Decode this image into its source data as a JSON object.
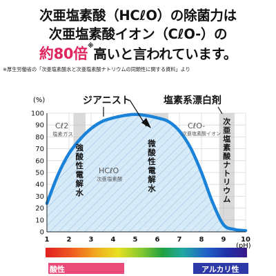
{
  "headline": {
    "line1": "次亜塩素酸（HCℓO）の除菌力は",
    "line2": "次亜塩素酸イオン（CℓO-）の",
    "line3_emph": "約80倍",
    "line3_mark": "※",
    "line3_rest": "高いと言われています。"
  },
  "source_note": "※厚生労働省の「次亜塩素酸水と次亜塩素酸ナトリウムの同類性に関する資料」より",
  "chart_data": {
    "type": "line",
    "y_unit": "(%)",
    "x_unit": "(pH)",
    "xlim": [
      1,
      10
    ],
    "ylim": [
      0,
      100
    ],
    "x_ticks": [
      1,
      2,
      3,
      4,
      5,
      6,
      7,
      8,
      9,
      10
    ],
    "y_ticks": [
      0,
      10,
      20,
      30,
      40,
      50,
      60,
      70,
      80,
      90,
      100
    ],
    "series": [
      {
        "x": [
          1,
          1.5,
          2,
          2.5,
          3,
          3.5,
          4,
          4.5,
          5,
          5.5,
          6,
          6.5,
          7,
          7.5,
          8,
          8.5,
          9,
          9.5,
          10
        ],
        "y": [
          24,
          48,
          66,
          78,
          87,
          93,
          96,
          98,
          99,
          98,
          96,
          93,
          85,
          71,
          50,
          25,
          6,
          2,
          1
        ]
      }
    ],
    "bands": [
      {
        "from": 2.2,
        "to": 2.75,
        "label": "強酸性電解水"
      },
      {
        "from": 5.0,
        "to": 6.5,
        "label": "微酸性電解水"
      },
      {
        "from": 8.8,
        "to": 9.5,
        "label": "次亜塩素酸ナトリウム"
      }
    ],
    "region_labels": {
      "cl2": {
        "formula": "Cℓ2",
        "name": "塩素ガス"
      },
      "hclo": {
        "formula": "HCℓO",
        "name": "次亜塩素酸"
      },
      "clo": {
        "formula": "CℓO-",
        "name": "次亜塩素酸イオン"
      }
    },
    "callouts": {
      "product": "ジアニスト",
      "bleach": "塩素系漂白剤"
    },
    "colors": {
      "curve": "#1a82d8",
      "fill": "#d7eaf8",
      "hatch": "#9cc4e6",
      "band": "#bcbcbc"
    }
  },
  "ph_scale": {
    "acid_label": "酸性",
    "alkali_label": "アルカリ性"
  }
}
